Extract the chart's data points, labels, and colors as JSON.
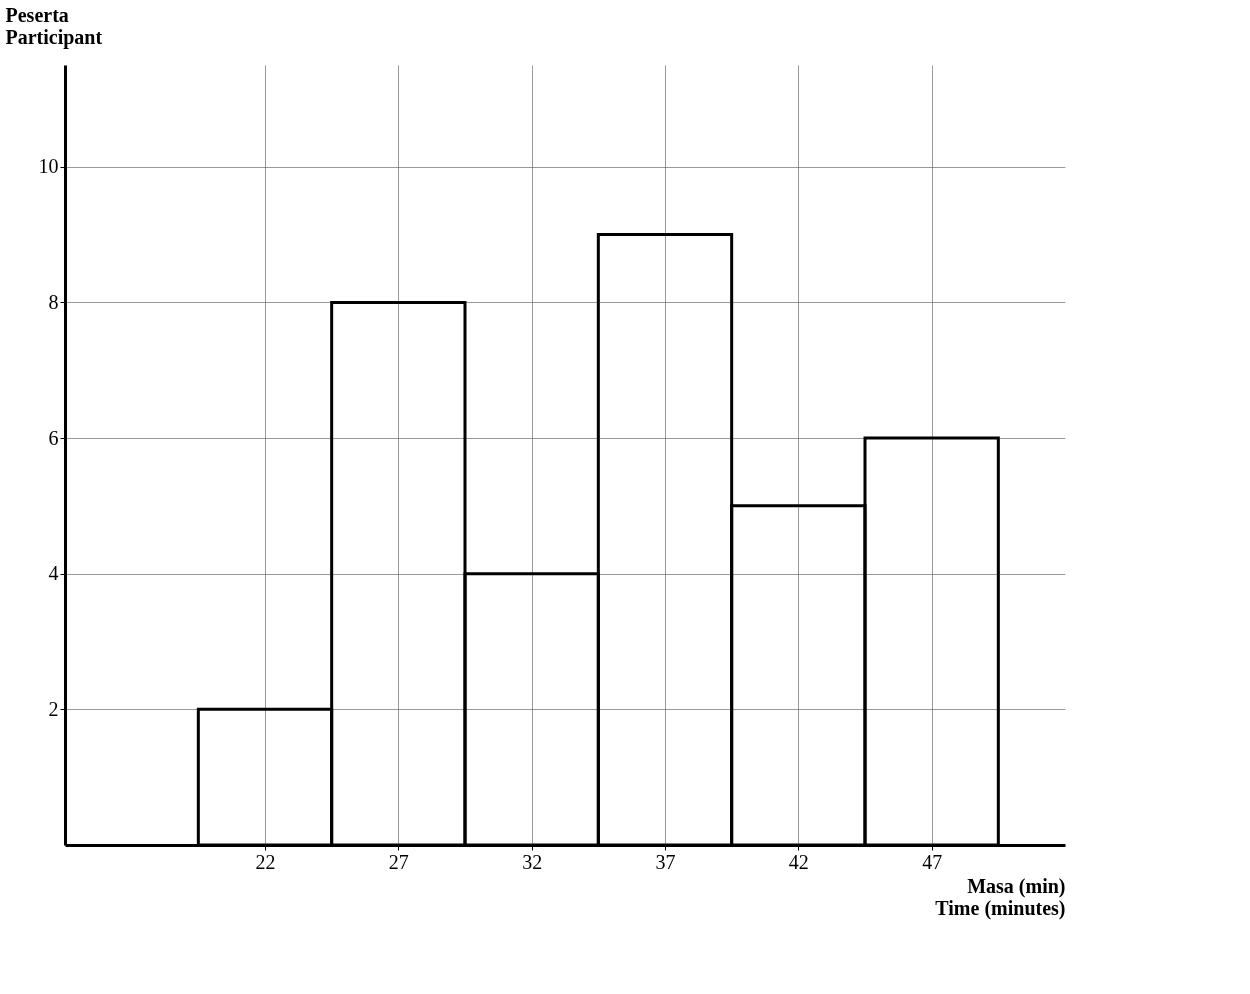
{
  "chart_data": {
    "type": "histogram",
    "xlabel": "Masa (min) Time (minutes)",
    "ylabel": "Peserta Participant",
    "bins": [
      19.5,
      24.5,
      29.5,
      34.5,
      39.5,
      44.5,
      49.5
    ],
    "values": [
      2,
      8,
      4,
      9,
      5,
      6
    ],
    "color": "#000000",
    "xlim": [
      14.5,
      52
    ],
    "xticks": [
      22,
      27,
      32,
      37,
      42,
      47
    ],
    "ylim": [
      0,
      11.5
    ],
    "yticks": [
      2,
      4,
      6,
      8,
      10
    ],
    "grid": true
  }
}
